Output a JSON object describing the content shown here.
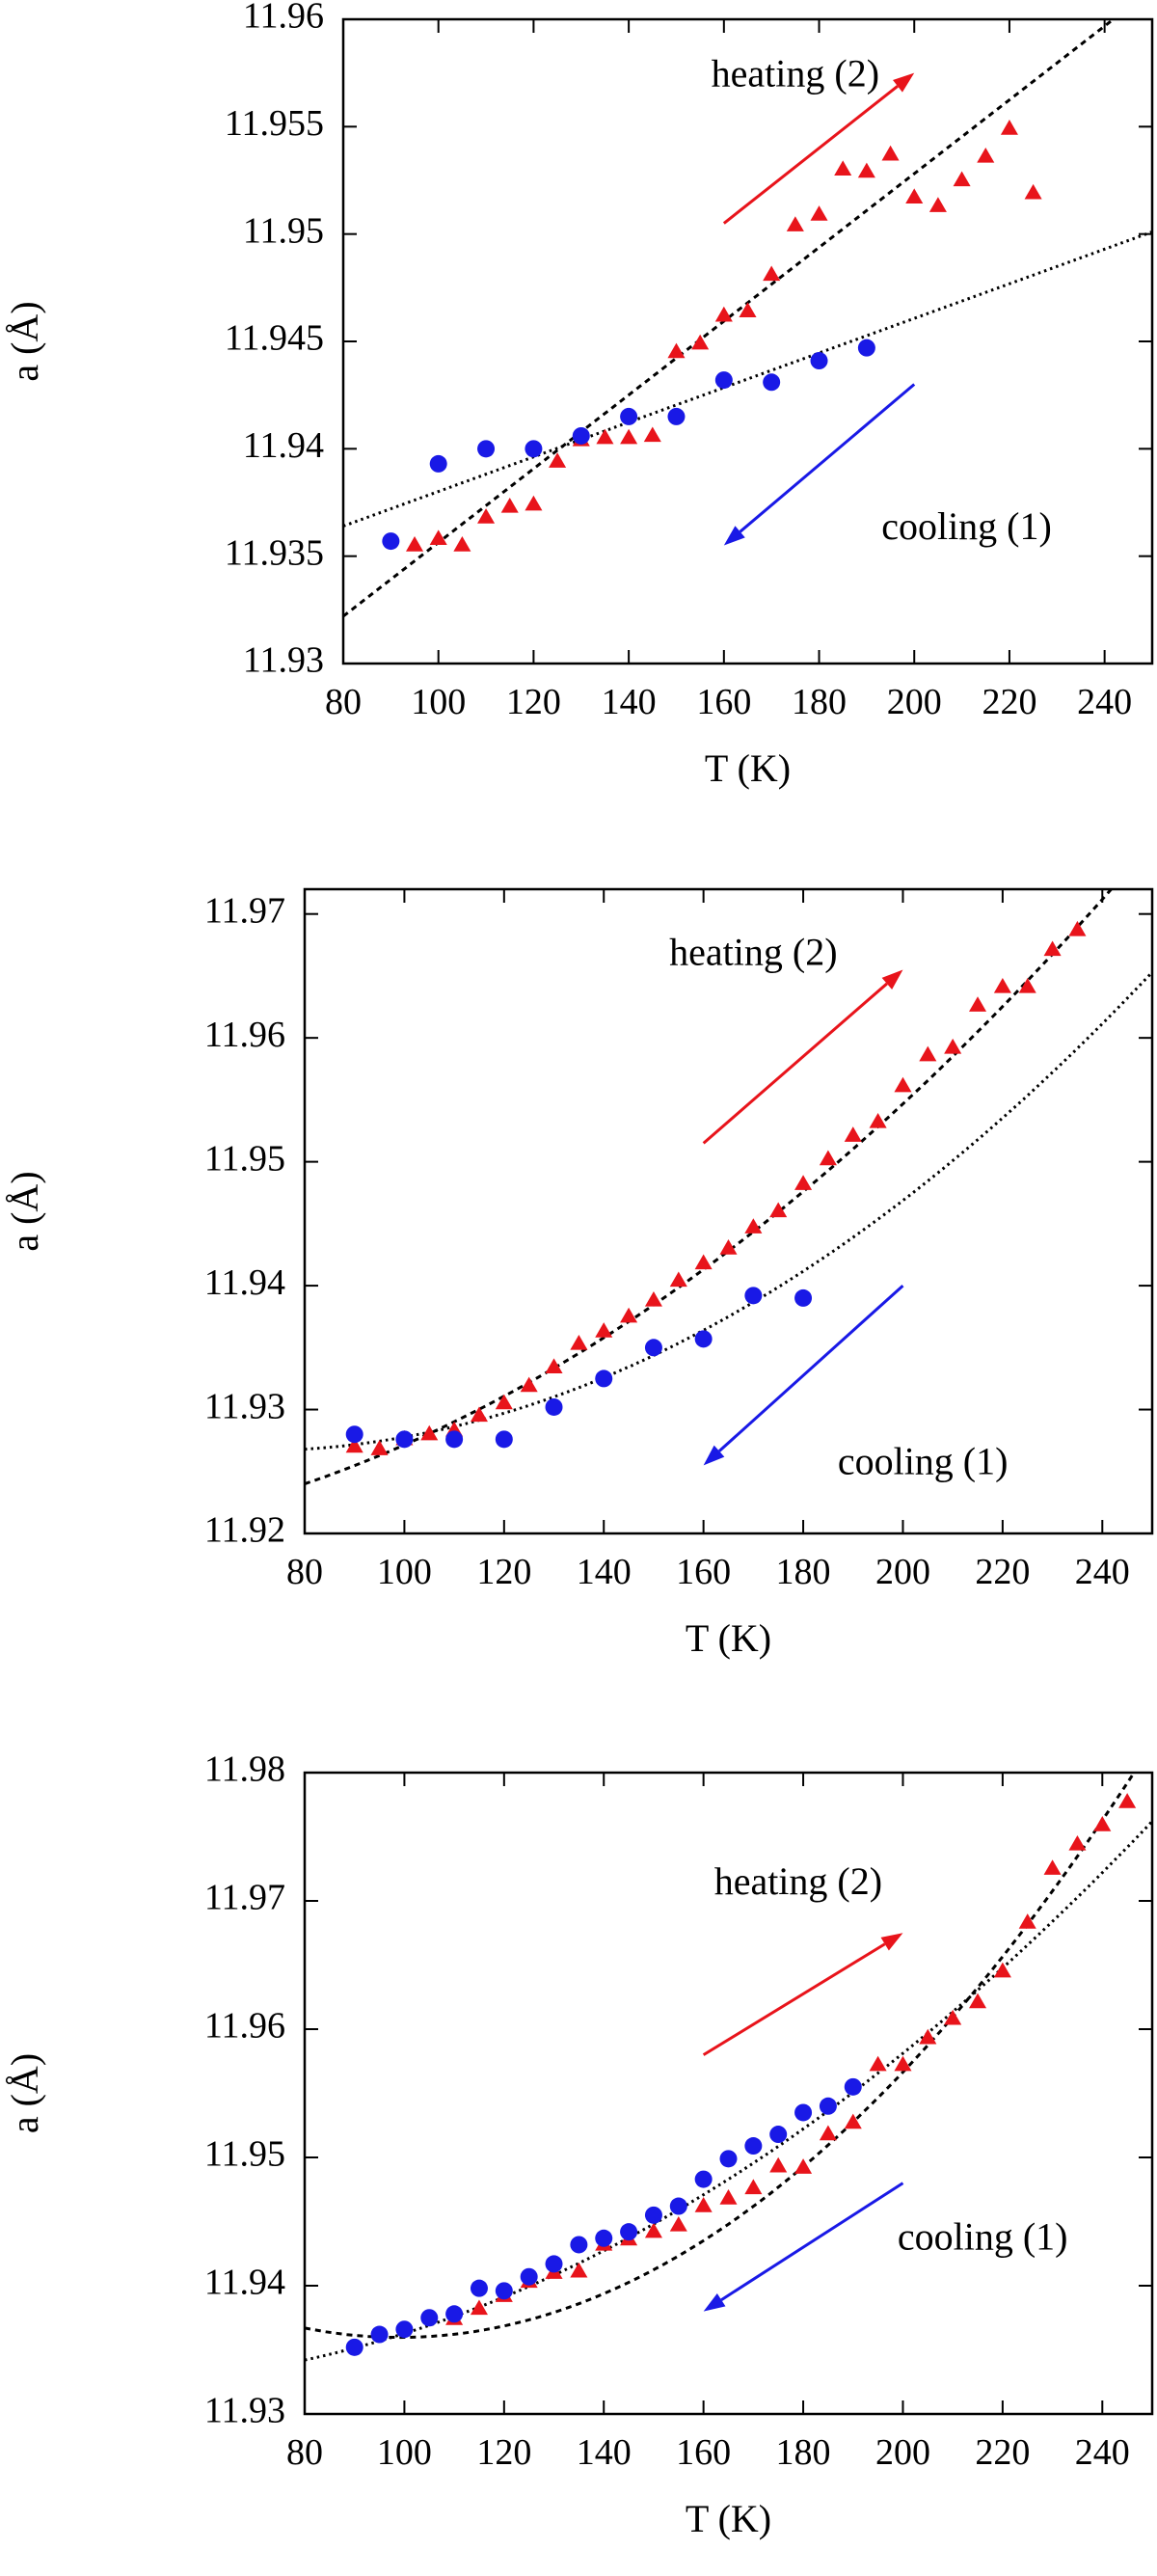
{
  "colors": {
    "heating": "#e8141b",
    "cooling": "#1919e6",
    "axis": "#000000",
    "fit": "#000000"
  },
  "chart_data": [
    {
      "type": "scatter",
      "title": "",
      "xlabel": "T (K)",
      "ylabel": "a (Å)",
      "xlim": [
        80,
        250
      ],
      "ylim": [
        11.93,
        11.96
      ],
      "xticks": [
        80,
        100,
        120,
        140,
        160,
        180,
        200,
        220,
        240
      ],
      "xtick_labels": [
        "80",
        "100",
        "120",
        "140",
        "160",
        "180",
        "200",
        "220",
        "240"
      ],
      "yticks": [
        11.93,
        11.935,
        11.94,
        11.945,
        11.95,
        11.955,
        11.96
      ],
      "ytick_labels": [
        "11.93",
        "11.935",
        "11.94",
        "11.945",
        "11.95",
        "11.955",
        "11.96"
      ],
      "grid": false,
      "annotations": [
        {
          "label": "heating (2)",
          "tx": 175,
          "ty": 11.9573,
          "arrow": [
            160,
            11.9505,
            200,
            11.9575
          ],
          "series": "heating"
        },
        {
          "label": "cooling (1)",
          "tx": 211,
          "ty": 11.9362,
          "arrow": [
            200,
            11.943,
            160,
            11.9355
          ],
          "series": "cooling"
        }
      ],
      "series": [
        {
          "name": "heating (2)",
          "marker": "triangle",
          "x": [
            95,
            100,
            105,
            110,
            115,
            120,
            125,
            130,
            135,
            140,
            145,
            150,
            155,
            160,
            165,
            170,
            175,
            180,
            185,
            190,
            195,
            200,
            205,
            210,
            215,
            220,
            225
          ],
          "y": [
            11.9355,
            11.9358,
            11.9355,
            11.9368,
            11.9373,
            11.9374,
            11.9394,
            11.9404,
            11.9405,
            11.9405,
            11.9406,
            11.9445,
            11.9449,
            11.9462,
            11.9464,
            11.9481,
            11.9504,
            11.9509,
            11.953,
            11.9529,
            11.9537,
            11.9517,
            11.9513,
            11.9525,
            11.9536,
            11.9549,
            11.9519
          ]
        },
        {
          "name": "cooling (1)",
          "marker": "circle",
          "x": [
            90,
            100,
            110,
            120,
            130,
            140,
            150,
            160,
            170,
            180,
            190
          ],
          "y": [
            11.9357,
            11.9393,
            11.94,
            11.94,
            11.9406,
            11.9415,
            11.9415,
            11.9432,
            11.9431,
            11.9441,
            11.9447
          ]
        }
      ],
      "fits": [
        {
          "name": "heating fit",
          "type": "linear",
          "dash": "short",
          "x": [
            80,
            250
          ],
          "y": [
            11.9322,
            11.9614
          ]
        },
        {
          "name": "cooling fit",
          "type": "linear",
          "dash": "dot",
          "x": [
            80,
            250
          ],
          "y": [
            11.9364,
            11.9501
          ]
        }
      ]
    },
    {
      "type": "scatter",
      "title": "",
      "xlabel": "T (K)",
      "ylabel": "a (Å)",
      "xlim": [
        80,
        250
      ],
      "ylim": [
        11.92,
        11.972
      ],
      "xticks": [
        80,
        100,
        120,
        140,
        160,
        180,
        200,
        220,
        240
      ],
      "xtick_labels": [
        "80",
        "100",
        "120",
        "140",
        "160",
        "180",
        "200",
        "220",
        "240"
      ],
      "yticks": [
        11.92,
        11.93,
        11.94,
        11.95,
        11.96,
        11.97
      ],
      "ytick_labels": [
        "11.92",
        "11.93",
        "11.94",
        "11.95",
        "11.96",
        "11.97"
      ],
      "grid": false,
      "annotations": [
        {
          "label": "heating (2)",
          "tx": 170,
          "ty": 11.9666,
          "arrow": [
            160,
            11.9515,
            200,
            11.9655
          ],
          "series": "heating"
        },
        {
          "label": "cooling (1)",
          "tx": 204,
          "ty": 11.9255,
          "arrow": [
            200,
            11.94,
            160,
            11.9255
          ],
          "series": "cooling"
        }
      ],
      "series": [
        {
          "name": "heating (2)",
          "marker": "triangle",
          "x": [
            90,
            95,
            100,
            105,
            110,
            115,
            120,
            125,
            130,
            135,
            140,
            145,
            150,
            155,
            160,
            165,
            170,
            175,
            180,
            185,
            190,
            195,
            200,
            205,
            210,
            215,
            220,
            225,
            230,
            235
          ],
          "y": [
            11.927,
            11.9268,
            11.9276,
            11.928,
            11.9283,
            11.9295,
            11.9305,
            11.9319,
            11.9334,
            11.9353,
            11.9363,
            11.9375,
            11.9388,
            11.9404,
            11.9418,
            11.943,
            11.9447,
            11.946,
            11.9482,
            11.9502,
            11.9521,
            11.9532,
            11.9561,
            11.9586,
            11.9592,
            11.9626,
            11.9641,
            11.9641,
            11.9671,
            11.9687
          ]
        },
        {
          "name": "cooling (1)",
          "marker": "circle",
          "x": [
            90,
            100,
            110,
            120,
            130,
            140,
            150,
            160,
            170,
            180
          ],
          "y": [
            11.928,
            11.9276,
            11.9276,
            11.9276,
            11.9302,
            11.9325,
            11.935,
            11.9357,
            11.9392,
            11.939
          ]
        }
      ],
      "fits": [
        {
          "name": "heating fit",
          "type": "quadratic",
          "dash": "short",
          "x": [
            80,
            165,
            250
          ],
          "y": [
            11.924,
            11.9428,
            11.9758
          ]
        },
        {
          "name": "cooling fit",
          "type": "quadratic",
          "dash": "dot",
          "x": [
            80,
            165,
            250
          ],
          "y": [
            11.9268,
            11.9375,
            11.9653
          ]
        }
      ]
    },
    {
      "type": "scatter",
      "title": "",
      "xlabel": "T (K)",
      "ylabel": "a (Å)",
      "xlim": [
        80,
        250
      ],
      "ylim": [
        11.93,
        11.98
      ],
      "xticks": [
        80,
        100,
        120,
        140,
        160,
        180,
        200,
        220,
        240
      ],
      "xtick_labels": [
        "80",
        "100",
        "120",
        "140",
        "160",
        "180",
        "200",
        "220",
        "240"
      ],
      "yticks": [
        11.93,
        11.94,
        11.95,
        11.96,
        11.97,
        11.98
      ],
      "ytick_labels": [
        "11.93",
        "11.94",
        "11.95",
        "11.96",
        "11.97",
        "11.98"
      ],
      "grid": false,
      "annotations": [
        {
          "label": "heating (2)",
          "tx": 179,
          "ty": 11.9712,
          "arrow": [
            160,
            11.958,
            200,
            11.9675
          ],
          "series": "heating"
        },
        {
          "label": "cooling (1)",
          "tx": 216,
          "ty": 11.9435,
          "arrow": [
            200,
            11.948,
            160,
            11.938
          ],
          "series": "cooling"
        }
      ],
      "series": [
        {
          "name": "heating (2)",
          "marker": "triangle",
          "x": [
            110,
            115,
            120,
            125,
            130,
            135,
            140,
            145,
            150,
            155,
            160,
            165,
            170,
            175,
            180,
            185,
            190,
            195,
            200,
            205,
            210,
            215,
            220,
            225,
            230,
            235,
            240,
            245
          ],
          "y": [
            11.9374,
            11.9382,
            11.9392,
            11.9403,
            11.941,
            11.9411,
            11.9432,
            11.9436,
            11.9442,
            11.9447,
            11.9462,
            11.9468,
            11.9476,
            11.9493,
            11.9492,
            11.9518,
            11.9527,
            11.9572,
            11.9572,
            11.9593,
            11.9608,
            11.9621,
            11.9645,
            11.9683,
            11.9725,
            11.9744,
            11.9759,
            11.9777
          ]
        },
        {
          "name": "cooling (1)",
          "marker": "circle",
          "x": [
            90,
            95,
            100,
            105,
            110,
            115,
            120,
            125,
            130,
            135,
            140,
            145,
            150,
            155,
            160,
            165,
            170,
            175,
            180,
            185,
            190
          ],
          "y": [
            11.9352,
            11.9362,
            11.9366,
            11.9375,
            11.9378,
            11.9398,
            11.9396,
            11.9407,
            11.9417,
            11.9432,
            11.9437,
            11.9442,
            11.9455,
            11.9462,
            11.9483,
            11.9499,
            11.9509,
            11.9518,
            11.9535,
            11.954,
            11.9555
          ]
        }
      ],
      "fits": [
        {
          "name": "heating fit",
          "type": "quadratic",
          "dash": "short",
          "x": [
            80,
            165,
            250
          ],
          "y": [
            11.9367,
            11.9448,
            11.9822
          ]
        },
        {
          "name": "cooling fit",
          "type": "quadratic",
          "dash": "dot",
          "x": [
            80,
            165,
            250
          ],
          "y": [
            11.9342,
            11.9483,
            11.9762
          ]
        }
      ]
    }
  ]
}
